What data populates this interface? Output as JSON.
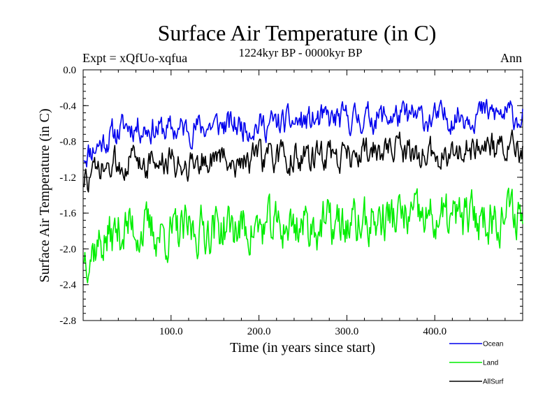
{
  "chart_data": {
    "type": "line",
    "title": "Surface Air Temperature (in C)",
    "subtitle": "1224kyr BP - 0000kyr BP",
    "left_note": "Expt = xQfUo-xqfua",
    "right_note": "Ann",
    "xlabel": "Time (in years since start)",
    "ylabel": "Surface Air Temperature (in C)",
    "xlim": [
      0,
      500
    ],
    "ylim": [
      -2.8,
      0.0
    ],
    "x_ticks": [
      100,
      200,
      300,
      400
    ],
    "x_tick_labels": [
      "100.0",
      "200.0",
      "300.0",
      "400.0"
    ],
    "y_ticks": [
      0.0,
      -0.4,
      -0.8,
      -1.2,
      -1.6,
      -2.0,
      -2.4,
      -2.8
    ],
    "y_tick_labels": [
      "0.0",
      "-0.4",
      "-0.8",
      "-1.2",
      "-1.6",
      "-2.0",
      "-2.4",
      "-2.8"
    ],
    "legend_position": "bottom-right, below plot",
    "series": [
      {
        "name": "Ocean",
        "color": "#0000ee",
        "baseline": [
          [
            0,
            -0.95
          ],
          [
            50,
            -0.62
          ],
          [
            100,
            -0.68
          ],
          [
            150,
            -0.62
          ],
          [
            200,
            -0.62
          ],
          [
            250,
            -0.58
          ],
          [
            300,
            -0.55
          ],
          [
            350,
            -0.52
          ],
          [
            400,
            -0.55
          ],
          [
            450,
            -0.48
          ],
          [
            500,
            -0.52
          ]
        ],
        "amplitude": 0.13,
        "seed": 11
      },
      {
        "name": "Land",
        "color": "#00ee00",
        "baseline": [
          [
            0,
            -2.05
          ],
          [
            50,
            -1.75
          ],
          [
            100,
            -1.85
          ],
          [
            150,
            -1.75
          ],
          [
            200,
            -1.78
          ],
          [
            250,
            -1.72
          ],
          [
            300,
            -1.75
          ],
          [
            350,
            -1.65
          ],
          [
            400,
            -1.68
          ],
          [
            450,
            -1.65
          ],
          [
            500,
            -1.6
          ]
        ],
        "amplitude": 0.22,
        "seed": 37
      },
      {
        "name": "AllSurf",
        "color": "#000000",
        "baseline": [
          [
            0,
            -1.25
          ],
          [
            50,
            -1.0
          ],
          [
            100,
            -1.05
          ],
          [
            150,
            -1.0
          ],
          [
            200,
            -1.0
          ],
          [
            250,
            -0.98
          ],
          [
            300,
            -0.95
          ],
          [
            350,
            -0.9
          ],
          [
            400,
            -0.95
          ],
          [
            450,
            -0.88
          ],
          [
            500,
            -0.9
          ]
        ],
        "amplitude": 0.14,
        "seed": 73
      }
    ]
  }
}
